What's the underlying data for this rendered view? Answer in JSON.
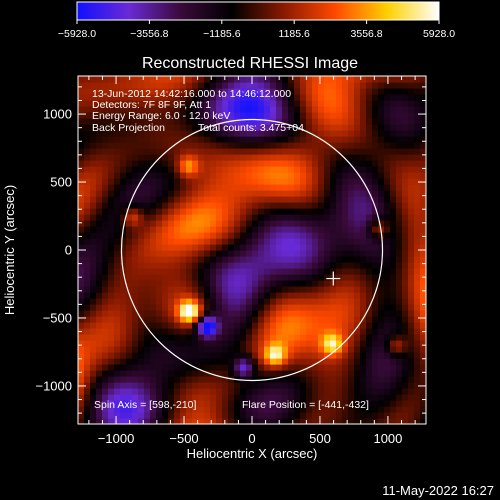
{
  "colorbar": {
    "ticks": [
      "-5928.0",
      "-3556.8",
      "-1185.6",
      "1185.6",
      "3556.8",
      "5928.0"
    ],
    "range": [
      -5928.0,
      5928.0
    ],
    "colormap": [
      "#1010ff",
      "#6a2ad6",
      "#3a0a3a",
      "#000000",
      "#8a1a00",
      "#ff4a00",
      "#ffd000",
      "#ffffff"
    ]
  },
  "chart_data": {
    "type": "heatmap",
    "title": "Reconstructed RHESSI Image",
    "xlabel": "Heliocentric X (arcsec)",
    "ylabel": "Heliocentric Y (arcsec)",
    "xlim": [
      -1280,
      1280
    ],
    "ylim": [
      -1280,
      1280
    ],
    "xticks": [
      -1000,
      -500,
      0,
      500,
      1000
    ],
    "yticks": [
      -1000,
      -500,
      0,
      500,
      1000
    ],
    "x_tick_labels": [
      "-1000",
      "-500",
      "0",
      "500",
      "1000"
    ],
    "y_tick_labels": [
      "-1000",
      "-500",
      "0",
      "500",
      "1000"
    ],
    "annotations": [
      "13-Jun-2012 14:42:16.000 to 14:46:12.000",
      "Detectors: 7F 8F 9F, Att 1",
      "Energy Range: 6.0 - 12.0 keV",
      "Back Projection",
      "Total counts: 3.475+04"
    ],
    "spin_axis_label": "Spin Axis = [598,-210]",
    "flare_position_label": "Flare Position = [-441,-432]",
    "spin_axis": [
      598,
      -210
    ],
    "flare_position": [
      -441,
      -432
    ],
    "solar_disk": {
      "center": [
        0,
        0
      ],
      "radius": 960
    },
    "features": [
      {
        "x": -460,
        "y": -450,
        "value": 5928,
        "kind": "peak"
      },
      {
        "x": -330,
        "y": -560,
        "value": -5928,
        "kind": "minimum"
      },
      {
        "x": -60,
        "y": -860,
        "value": -4500,
        "kind": "minimum"
      },
      {
        "x": 170,
        "y": -770,
        "value": 4200,
        "kind": "peak"
      },
      {
        "x": 590,
        "y": -690,
        "value": 3800,
        "kind": "peak"
      },
      {
        "x": -880,
        "y": 250,
        "value": 3000,
        "kind": "peak"
      },
      {
        "x": -470,
        "y": 620,
        "value": 3200,
        "kind": "peak"
      },
      {
        "x": 930,
        "y": 160,
        "value": 3400,
        "kind": "peak"
      },
      {
        "x": 1060,
        "y": -700,
        "value": 3000,
        "kind": "peak"
      }
    ]
  },
  "footer": {
    "date": "11-May-2022 16:27"
  }
}
